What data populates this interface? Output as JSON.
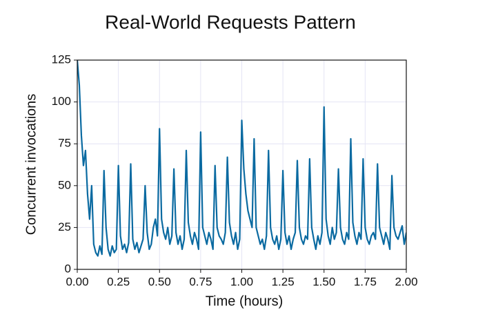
{
  "chart_data": {
    "type": "line",
    "title": "Real-World Requests Pattern",
    "xlabel": "Time (hours)",
    "ylabel": "Concurrent invocations",
    "color": "#0a6aa1",
    "grid": true,
    "xlim": [
      0,
      2
    ],
    "ylim": [
      0,
      125
    ],
    "xticks": [
      {
        "value": 0,
        "label": "0.00"
      },
      {
        "value": 0.25,
        "label": "0.25"
      },
      {
        "value": 0.5,
        "label": "0.50"
      },
      {
        "value": 0.75,
        "label": "0.75"
      },
      {
        "value": 1,
        "label": "1.00"
      },
      {
        "value": 1.25,
        "label": "1.25"
      },
      {
        "value": 1.5,
        "label": "1.50"
      },
      {
        "value": 1.75,
        "label": "1.75"
      },
      {
        "value": 2,
        "label": "2.00"
      }
    ],
    "yticks": [
      0,
      25,
      50,
      75,
      100,
      125
    ],
    "x": [
      0,
      0.0125,
      0.025,
      0.0375,
      0.05,
      0.0625,
      0.075,
      0.0875,
      0.1,
      0.1125,
      0.125,
      0.1375,
      0.15,
      0.1625,
      0.175,
      0.1875,
      0.2,
      0.2125,
      0.225,
      0.2375,
      0.25,
      0.2625,
      0.275,
      0.2875,
      0.3,
      0.3125,
      0.325,
      0.3375,
      0.35,
      0.3625,
      0.375,
      0.3875,
      0.4,
      0.4125,
      0.425,
      0.4375,
      0.45,
      0.4625,
      0.475,
      0.4875,
      0.5,
      0.5125,
      0.525,
      0.5375,
      0.55,
      0.5625,
      0.575,
      0.5875,
      0.6,
      0.6125,
      0.625,
      0.6375,
      0.65,
      0.6625,
      0.675,
      0.6875,
      0.7,
      0.7125,
      0.725,
      0.7375,
      0.75,
      0.7625,
      0.775,
      0.7875,
      0.8,
      0.8125,
      0.825,
      0.8375,
      0.85,
      0.8625,
      0.875,
      0.8875,
      0.9,
      0.9125,
      0.925,
      0.9375,
      0.95,
      0.9625,
      0.975,
      0.9875,
      1,
      1.0125,
      1.025,
      1.0375,
      1.05,
      1.0625,
      1.075,
      1.0875,
      1.1,
      1.1125,
      1.125,
      1.1375,
      1.15,
      1.1625,
      1.175,
      1.1875,
      1.2,
      1.2125,
      1.225,
      1.2375,
      1.25,
      1.2625,
      1.275,
      1.2875,
      1.3,
      1.3125,
      1.325,
      1.3375,
      1.35,
      1.3625,
      1.375,
      1.3875,
      1.4,
      1.4125,
      1.425,
      1.4375,
      1.45,
      1.4625,
      1.475,
      1.4875,
      1.5,
      1.5125,
      1.525,
      1.5375,
      1.55,
      1.5625,
      1.575,
      1.5875,
      1.6,
      1.6125,
      1.625,
      1.6375,
      1.65,
      1.6625,
      1.675,
      1.6875,
      1.7,
      1.7125,
      1.725,
      1.7375,
      1.75,
      1.7625,
      1.775,
      1.7875,
      1.8,
      1.8125,
      1.825,
      1.8375,
      1.85,
      1.8625,
      1.875,
      1.8875,
      1.9,
      1.9125,
      1.925,
      1.9375,
      1.95,
      1.9625,
      1.975,
      1.9875,
      2
    ],
    "values": [
      125,
      110,
      80,
      62,
      71,
      45,
      30,
      50,
      15,
      10,
      8,
      14,
      9,
      59,
      25,
      12,
      8,
      14,
      10,
      12,
      62,
      20,
      12,
      15,
      10,
      16,
      63,
      18,
      12,
      16,
      10,
      14,
      18,
      50,
      22,
      12,
      15,
      25,
      30,
      20,
      84,
      30,
      22,
      18,
      25,
      15,
      20,
      60,
      22,
      15,
      20,
      12,
      18,
      71,
      28,
      20,
      15,
      22,
      18,
      12,
      82,
      25,
      20,
      15,
      22,
      18,
      12,
      62,
      25,
      20,
      18,
      15,
      22,
      67,
      28,
      20,
      15,
      22,
      12,
      18,
      89,
      60,
      45,
      35,
      30,
      25,
      78,
      25,
      20,
      15,
      18,
      12,
      20,
      71,
      25,
      18,
      15,
      20,
      12,
      18,
      59,
      22,
      15,
      20,
      12,
      18,
      22,
      65,
      25,
      18,
      15,
      20,
      18,
      66,
      25,
      18,
      12,
      20,
      15,
      22,
      97,
      30,
      20,
      15,
      25,
      18,
      22,
      60,
      25,
      18,
      15,
      22,
      18,
      78,
      28,
      20,
      15,
      22,
      18,
      66,
      25,
      18,
      15,
      20,
      22,
      18,
      63,
      25,
      20,
      15,
      22,
      18,
      12,
      56,
      25,
      20,
      18,
      22,
      26,
      15,
      22
    ]
  }
}
